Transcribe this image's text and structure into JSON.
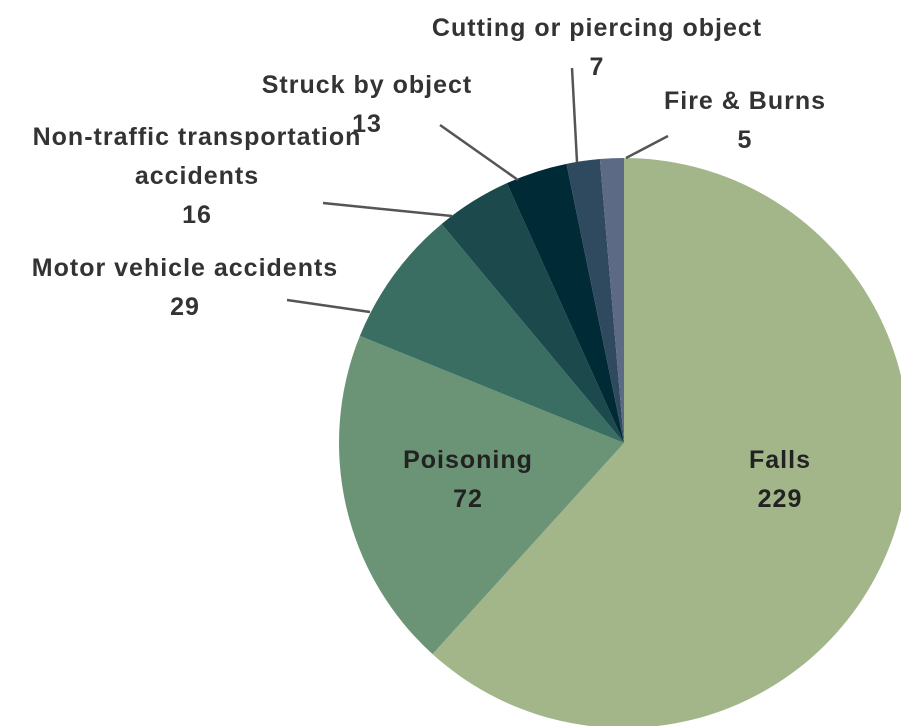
{
  "chart_data": {
    "type": "pie",
    "categories": [
      "Falls",
      "Poisoning",
      "Motor vehicle accidents",
      "Non-traffic transportation accidents",
      "Struck by object",
      "Cutting or piercing object",
      "Fire & Burns"
    ],
    "values": [
      229,
      72,
      29,
      16,
      13,
      7,
      5
    ],
    "colors": [
      "#a2b68a",
      "#6a9475",
      "#3b6e63",
      "#1c4a4c",
      "#002a35",
      "#2f4a5e",
      "#5d6a85"
    ]
  }
}
